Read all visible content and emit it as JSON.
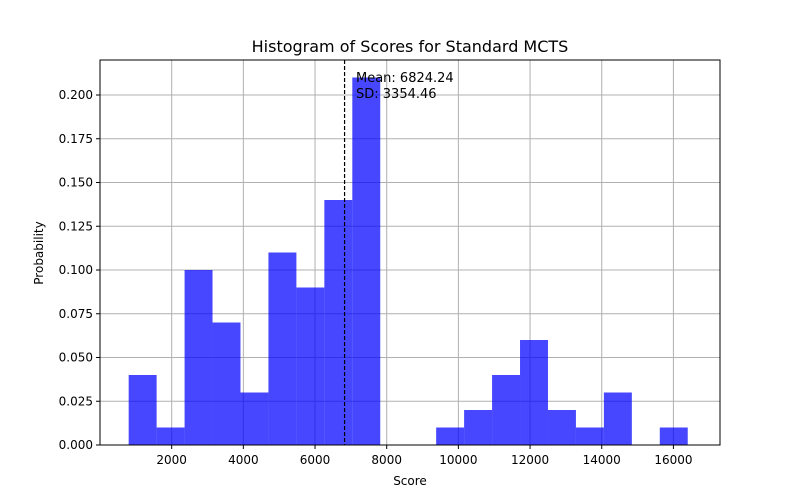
{
  "chart_data": {
    "type": "bar",
    "title": "Histogram of Scores for Standard MCTS",
    "xlabel": "Score",
    "ylabel": "Probability",
    "xlim": [
      0,
      17300
    ],
    "ylim": [
      0,
      0.22
    ],
    "grid": true,
    "bar_color": "#0000ff",
    "bin_edges": [
      800,
      1580,
      2360,
      3140,
      3920,
      4700,
      5480,
      6260,
      7040,
      7820,
      8600,
      9380,
      10160,
      10940,
      11720,
      12500,
      13280,
      14060,
      14840,
      15620,
      16400
    ],
    "values": [
      0.04,
      0.01,
      0.1,
      0.07,
      0.03,
      0.11,
      0.09,
      0.14,
      0.21,
      0.0,
      0.0,
      0.01,
      0.02,
      0.04,
      0.06,
      0.02,
      0.01,
      0.03,
      0.0,
      0.01
    ],
    "x_ticks": [
      2000,
      4000,
      6000,
      8000,
      10000,
      12000,
      14000,
      16000
    ],
    "x_tick_labels": [
      "2000",
      "4000",
      "6000",
      "8000",
      "10000",
      "12000",
      "14000",
      "16000"
    ],
    "y_ticks": [
      0.0,
      0.025,
      0.05,
      0.075,
      0.1,
      0.125,
      0.15,
      0.175,
      0.2
    ],
    "y_tick_labels": [
      "0.000",
      "0.025",
      "0.050",
      "0.075",
      "0.100",
      "0.125",
      "0.150",
      "0.175",
      "0.200"
    ],
    "mean_line": 6824.24,
    "annotations": [
      "Mean: 6824.24",
      "SD: 3354.46"
    ]
  }
}
